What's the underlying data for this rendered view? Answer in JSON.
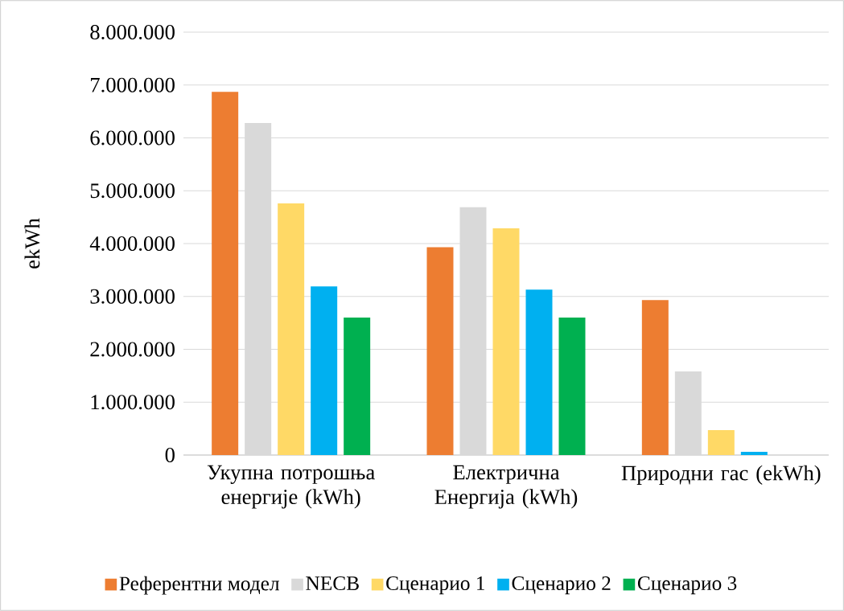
{
  "chart_data": {
    "type": "bar",
    "ylabel": "ekWh",
    "categories": [
      "Укупна потрошња енергије (kWh)",
      "Електрична Енергија (kWh)",
      "Природни гас (ekWh)"
    ],
    "series": [
      {
        "name": "Референтни модел",
        "color": "#ed7d31",
        "values": [
          6870000,
          3930000,
          2930000
        ]
      },
      {
        "name": "NECB",
        "color": "#d9d9d9",
        "values": [
          6280000,
          4690000,
          1580000
        ]
      },
      {
        "name": "Сценарио 1",
        "color": "#ffd966",
        "values": [
          4760000,
          4290000,
          470000
        ]
      },
      {
        "name": "Сценарио 2",
        "color": "#00b0f0",
        "values": [
          3190000,
          3130000,
          60000
        ]
      },
      {
        "name": "Сценарио 3",
        "color": "#00b050",
        "values": [
          2600000,
          2600000,
          0
        ]
      }
    ],
    "ylim": [
      0,
      8000000
    ],
    "yticks": [
      0,
      {
        "value": 1000000,
        "label": "1.000.000"
      },
      {
        "value": 2000000,
        "label": "2.000.000"
      },
      {
        "value": 3000000,
        "label": "3.000.000"
      },
      {
        "value": 4000000,
        "label": "4.000.000"
      },
      {
        "value": 5000000,
        "label": "5.000.000"
      },
      {
        "value": 6000000,
        "label": "6.000.000"
      },
      {
        "value": 7000000,
        "label": "7.000.000"
      },
      {
        "value": 8000000,
        "label": "8.000.000"
      }
    ],
    "grid": "y",
    "legend": "bottom"
  }
}
